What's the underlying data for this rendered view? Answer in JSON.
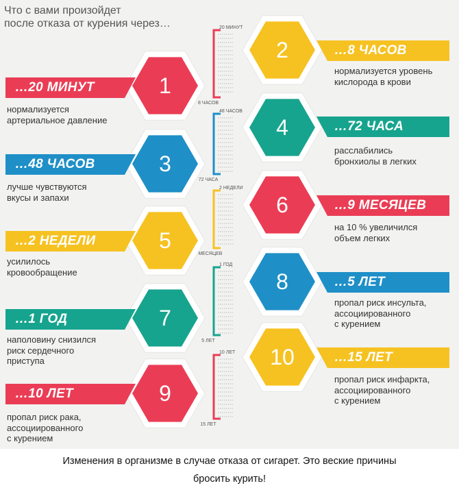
{
  "title_lines": [
    "Что с вами произойдет",
    "после отказа от курения через…"
  ],
  "colors": {
    "red": "#ea3d55",
    "yellow": "#f6c222",
    "blue": "#1f8fc7",
    "teal": "#17a48e"
  },
  "steps": [
    {
      "num": "1",
      "time": "…20 МИНУТ",
      "desc": [
        "нормализуется",
        "артериальное давление"
      ],
      "color": "red",
      "side": "left"
    },
    {
      "num": "2",
      "time": "…8 ЧАСОВ",
      "desc": [
        "нормализуется уровень",
        "кислорода в крови"
      ],
      "color": "yellow",
      "side": "right"
    },
    {
      "num": "3",
      "time": "…48 ЧАСОВ",
      "desc": [
        "лучше чувствуются",
        "вкусы и запахи"
      ],
      "color": "blue",
      "side": "left"
    },
    {
      "num": "4",
      "time": "…72 ЧАСА",
      "desc": [
        "расслабились",
        "бронхиолы в легких"
      ],
      "color": "teal",
      "side": "right"
    },
    {
      "num": "5",
      "time": "…2 НЕДЕЛИ",
      "desc": [
        "усилилось",
        "кровообращение"
      ],
      "color": "yellow",
      "side": "left"
    },
    {
      "num": "6",
      "time": "…9 МЕСЯЦЕВ",
      "desc": [
        "на 10 % увеличился",
        "объем легких"
      ],
      "color": "red",
      "side": "right"
    },
    {
      "num": "7",
      "time": "…1 ГОД",
      "desc": [
        "наполовину снизился",
        "риск сердечного",
        "приступа"
      ],
      "color": "teal",
      "side": "left"
    },
    {
      "num": "8",
      "time": "…5 ЛЕТ",
      "desc": [
        "пропал риск инсульта,",
        "ассоциированного",
        "с курением"
      ],
      "color": "blue",
      "side": "right"
    },
    {
      "num": "9",
      "time": "…10 ЛЕТ",
      "desc": [
        "пропал риск рака,",
        "ассоциированного",
        "с курением"
      ],
      "color": "red",
      "side": "left"
    },
    {
      "num": "10",
      "time": "…15 ЛЕТ",
      "desc": [
        "пропал риск инфаркта,",
        "ассоциированного",
        "с курением"
      ],
      "color": "yellow",
      "side": "right"
    }
  ],
  "scale": [
    {
      "start": "20 МИНУТ",
      "end": "8 ЧАСОВ",
      "color": "red"
    },
    {
      "start": "48 ЧАСОВ",
      "end": "72 ЧАСА",
      "color": "blue"
    },
    {
      "start": "2 НЕДЕЛИ",
      "end": "9 МЕСЯЦЕВ",
      "color": "yellow"
    },
    {
      "start": "1 ГОД",
      "end": "5 ЛЕТ",
      "color": "teal"
    },
    {
      "start": "10 ЛЕТ",
      "end": "15 ЛЕТ",
      "color": "red"
    }
  ],
  "footer_lines": [
    "Изменения в организме в случае отказа от сигарет. Это веские причины",
    "бросить курить!"
  ]
}
